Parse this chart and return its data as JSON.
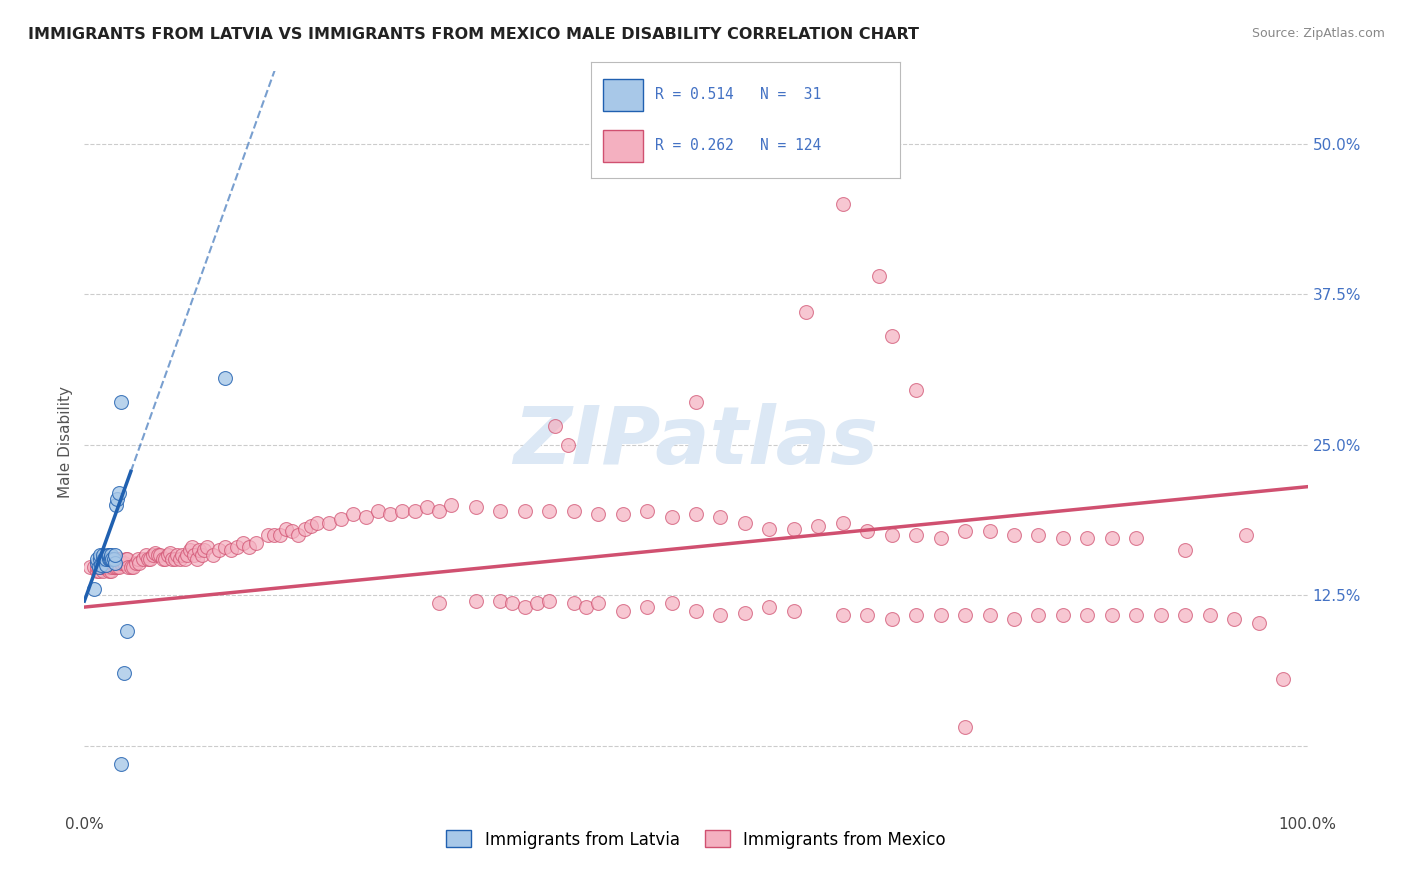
{
  "title": "IMMIGRANTS FROM LATVIA VS IMMIGRANTS FROM MEXICO MALE DISABILITY CORRELATION CHART",
  "source": "Source: ZipAtlas.com",
  "ylabel": "Male Disability",
  "legend_latvia": "Immigrants from Latvia",
  "legend_mexico": "Immigrants from Mexico",
  "r_latvia": 0.514,
  "n_latvia": 31,
  "r_mexico": 0.262,
  "n_mexico": 124,
  "color_latvia": "#a8c8e8",
  "color_mexico": "#f4b0c0",
  "trendline_latvia": "#2060b0",
  "trendline_mexico": "#d05070",
  "background": "#ffffff",
  "grid_color": "#cccccc",
  "xlim": [
    0.0,
    1.0
  ],
  "ylim": [
    -0.055,
    0.56
  ],
  "yticks": [
    0.0,
    0.125,
    0.25,
    0.375,
    0.5
  ],
  "ytick_labels": [
    "",
    "12.5%",
    "25.0%",
    "37.5%",
    "50.0%"
  ],
  "xticks": [
    0.0,
    0.25,
    0.5,
    0.75,
    1.0
  ],
  "xtick_labels": [
    "0.0%",
    "",
    "",
    "",
    "100.0%"
  ],
  "latvia_x": [
    0.008,
    0.01,
    0.01,
    0.012,
    0.013,
    0.013,
    0.014,
    0.015,
    0.015,
    0.016,
    0.017,
    0.018,
    0.018,
    0.019,
    0.02,
    0.02,
    0.021,
    0.022,
    0.022,
    0.023,
    0.024,
    0.025,
    0.025,
    0.026,
    0.027,
    0.028,
    0.03,
    0.03,
    0.032,
    0.035,
    0.115
  ],
  "latvia_y": [
    0.13,
    0.152,
    0.155,
    0.148,
    0.155,
    0.158,
    0.15,
    0.155,
    0.158,
    0.155,
    0.155,
    0.15,
    0.155,
    0.158,
    0.155,
    0.158,
    0.155,
    0.155,
    0.158,
    0.155,
    0.155,
    0.152,
    0.158,
    0.2,
    0.205,
    0.21,
    0.285,
    -0.015,
    0.06,
    0.095,
    0.305
  ],
  "mexico_x": [
    0.005,
    0.008,
    0.01,
    0.01,
    0.012,
    0.012,
    0.013,
    0.014,
    0.015,
    0.015,
    0.016,
    0.017,
    0.018,
    0.018,
    0.019,
    0.02,
    0.02,
    0.02,
    0.021,
    0.022,
    0.022,
    0.023,
    0.024,
    0.025,
    0.025,
    0.026,
    0.027,
    0.028,
    0.028,
    0.03,
    0.032,
    0.034,
    0.035,
    0.036,
    0.038,
    0.04,
    0.042,
    0.044,
    0.045,
    0.048,
    0.05,
    0.052,
    0.054,
    0.056,
    0.058,
    0.06,
    0.062,
    0.064,
    0.066,
    0.068,
    0.07,
    0.072,
    0.074,
    0.076,
    0.078,
    0.08,
    0.082,
    0.084,
    0.086,
    0.088,
    0.09,
    0.092,
    0.094,
    0.096,
    0.098,
    0.1,
    0.105,
    0.11,
    0.115,
    0.12,
    0.125,
    0.13,
    0.135,
    0.14,
    0.15,
    0.155,
    0.16,
    0.165,
    0.17,
    0.175,
    0.18,
    0.185,
    0.19,
    0.2,
    0.21,
    0.22,
    0.23,
    0.24,
    0.25,
    0.26,
    0.27,
    0.28,
    0.29,
    0.3,
    0.32,
    0.34,
    0.36,
    0.38,
    0.4,
    0.42,
    0.44,
    0.46,
    0.48,
    0.5,
    0.52,
    0.54,
    0.56,
    0.58,
    0.6,
    0.62,
    0.64,
    0.66,
    0.68,
    0.7,
    0.72,
    0.74,
    0.76,
    0.78,
    0.8,
    0.82,
    0.84,
    0.86,
    0.9,
    0.95
  ],
  "mexico_y": [
    0.148,
    0.148,
    0.145,
    0.148,
    0.145,
    0.152,
    0.148,
    0.148,
    0.145,
    0.148,
    0.148,
    0.148,
    0.148,
    0.152,
    0.148,
    0.145,
    0.148,
    0.152,
    0.148,
    0.145,
    0.152,
    0.148,
    0.152,
    0.148,
    0.155,
    0.155,
    0.148,
    0.148,
    0.155,
    0.152,
    0.152,
    0.155,
    0.155,
    0.148,
    0.148,
    0.148,
    0.152,
    0.155,
    0.152,
    0.155,
    0.158,
    0.155,
    0.155,
    0.158,
    0.16,
    0.158,
    0.158,
    0.155,
    0.155,
    0.158,
    0.16,
    0.155,
    0.155,
    0.158,
    0.155,
    0.158,
    0.155,
    0.158,
    0.162,
    0.165,
    0.158,
    0.155,
    0.162,
    0.158,
    0.162,
    0.165,
    0.158,
    0.162,
    0.165,
    0.162,
    0.165,
    0.168,
    0.165,
    0.168,
    0.175,
    0.175,
    0.175,
    0.18,
    0.178,
    0.175,
    0.18,
    0.182,
    0.185,
    0.185,
    0.188,
    0.192,
    0.19,
    0.195,
    0.192,
    0.195,
    0.195,
    0.198,
    0.195,
    0.2,
    0.198,
    0.195,
    0.195,
    0.195,
    0.195,
    0.192,
    0.192,
    0.195,
    0.19,
    0.192,
    0.19,
    0.185,
    0.18,
    0.18,
    0.182,
    0.185,
    0.178,
    0.175,
    0.175,
    0.172,
    0.178,
    0.178,
    0.175,
    0.175,
    0.172,
    0.172,
    0.172,
    0.172,
    0.162,
    0.175
  ],
  "mexico_outliers_x": [
    0.385,
    0.395,
    0.5,
    0.59,
    0.62,
    0.65,
    0.68,
    0.66,
    0.72
  ],
  "mexico_outliers_y": [
    0.265,
    0.25,
    0.285,
    0.36,
    0.45,
    0.39,
    0.295,
    0.34,
    0.015
  ],
  "mexico_low_x": [
    0.29,
    0.32,
    0.34,
    0.35,
    0.36,
    0.37,
    0.38,
    0.4,
    0.41,
    0.42,
    0.44,
    0.46,
    0.48,
    0.5,
    0.52,
    0.54,
    0.56,
    0.58,
    0.62,
    0.64,
    0.66,
    0.68,
    0.7,
    0.72,
    0.74,
    0.76,
    0.78,
    0.8,
    0.82,
    0.84,
    0.86,
    0.88,
    0.9,
    0.92,
    0.94,
    0.96,
    0.98
  ],
  "mexico_low_y": [
    0.118,
    0.12,
    0.12,
    0.118,
    0.115,
    0.118,
    0.12,
    0.118,
    0.115,
    0.118,
    0.112,
    0.115,
    0.118,
    0.112,
    0.108,
    0.11,
    0.115,
    0.112,
    0.108,
    0.108,
    0.105,
    0.108,
    0.108,
    0.108,
    0.108,
    0.105,
    0.108,
    0.108,
    0.108,
    0.108,
    0.108,
    0.108,
    0.108,
    0.108,
    0.105,
    0.102,
    0.055
  ],
  "trendline_lv_x0": 0.0,
  "trendline_lv_y0": 0.12,
  "trendline_lv_x1": 0.09,
  "trendline_lv_y1": 0.375,
  "trendline_mx_x0": 0.0,
  "trendline_mx_y0": 0.115,
  "trendline_mx_x1": 1.0,
  "trendline_mx_y1": 0.215
}
